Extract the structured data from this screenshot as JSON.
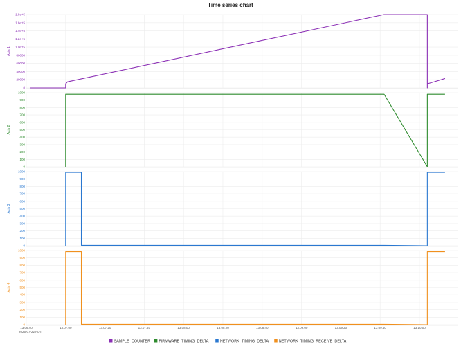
{
  "chart_data": {
    "type": "line",
    "title": "Time series chart",
    "x_date_label": "2025-07-22 PDT",
    "x_tick_labels": [
      "13:06:40",
      "13:07:00",
      "13:07:20",
      "13:07:40",
      "13:08:00",
      "13:08:20",
      "13:08:40",
      "13:09:00",
      "13:09:20",
      "13:09:40",
      "13:10:00"
    ],
    "legend": {
      "placement": "bottom"
    },
    "grid": true,
    "panels": [
      {
        "ylabel": "Axis 1",
        "series_name": "SAMPLE_COUNTER",
        "color": "#8b2fb5",
        "y_tick_labels": [
          "0",
          "20000",
          "40000",
          "60000",
          "80000",
          "1.0e+5",
          "1.2e+5",
          "1.4e+5",
          "1.6e+5",
          "1.8e+5"
        ],
        "ylim": [
          0,
          180000
        ],
        "points": [
          {
            "x": "13:06:42",
            "y": 0
          },
          {
            "x": "13:07:00",
            "y": 0
          },
          {
            "x": "13:07:00",
            "y": 10000
          },
          {
            "x": "13:07:01",
            "y": 15000
          },
          {
            "x": "13:09:42",
            "y": 180000
          },
          {
            "x": "13:10:04",
            "y": 180000
          },
          {
            "x": "13:10:04",
            "y": 0
          },
          {
            "x": "13:10:04",
            "y": 10000
          },
          {
            "x": "13:10:13",
            "y": 23000
          }
        ]
      },
      {
        "ylabel": "Axis 2",
        "series_name": "FIRMWARE_TIMING_DELTA",
        "color": "#2e8b2e",
        "y_tick_labels": [
          "0",
          "100",
          "200",
          "300",
          "400",
          "500",
          "600",
          "700",
          "800",
          "900",
          "1000"
        ],
        "ylim": [
          0,
          1000
        ],
        "points": [
          {
            "x": "13:07:00",
            "y": 0
          },
          {
            "x": "13:07:00",
            "y": 980
          },
          {
            "x": "13:09:42",
            "y": 980
          },
          {
            "x": "13:10:04",
            "y": 0
          },
          {
            "x": "13:10:04",
            "y": 980
          },
          {
            "x": "13:10:13",
            "y": 980
          }
        ]
      },
      {
        "ylabel": "Axis 3",
        "series_name": "NETWORK_TIMING_DELTA",
        "color": "#2a78d0",
        "y_tick_labels": [
          "0",
          "100",
          "200",
          "300",
          "400",
          "500",
          "600",
          "700",
          "800",
          "900",
          "1000"
        ],
        "ylim": [
          0,
          1000
        ],
        "points": [
          {
            "x": "13:07:00",
            "y": 0
          },
          {
            "x": "13:07:00",
            "y": 990
          },
          {
            "x": "13:07:08",
            "y": 990
          },
          {
            "x": "13:07:08",
            "y": 5
          },
          {
            "x": "13:09:42",
            "y": 5
          },
          {
            "x": "13:10:04",
            "y": 0
          },
          {
            "x": "13:10:04",
            "y": 990
          },
          {
            "x": "13:10:13",
            "y": 990
          }
        ]
      },
      {
        "ylabel": "Axis 4",
        "series_name": "NETWORK_TIMING_RECEIVE_DELTA",
        "color": "#f0901e",
        "y_tick_labels": [
          "0",
          "100",
          "200",
          "300",
          "400",
          "500",
          "600",
          "700",
          "800",
          "900",
          "1000"
        ],
        "ylim": [
          0,
          1000
        ],
        "points": [
          {
            "x": "13:07:00",
            "y": 0
          },
          {
            "x": "13:07:00",
            "y": 985
          },
          {
            "x": "13:07:08",
            "y": 985
          },
          {
            "x": "13:07:08",
            "y": 5
          },
          {
            "x": "13:09:42",
            "y": 5
          },
          {
            "x": "13:10:04",
            "y": 0
          },
          {
            "x": "13:10:04",
            "y": 985
          },
          {
            "x": "13:10:13",
            "y": 985
          }
        ]
      }
    ]
  }
}
